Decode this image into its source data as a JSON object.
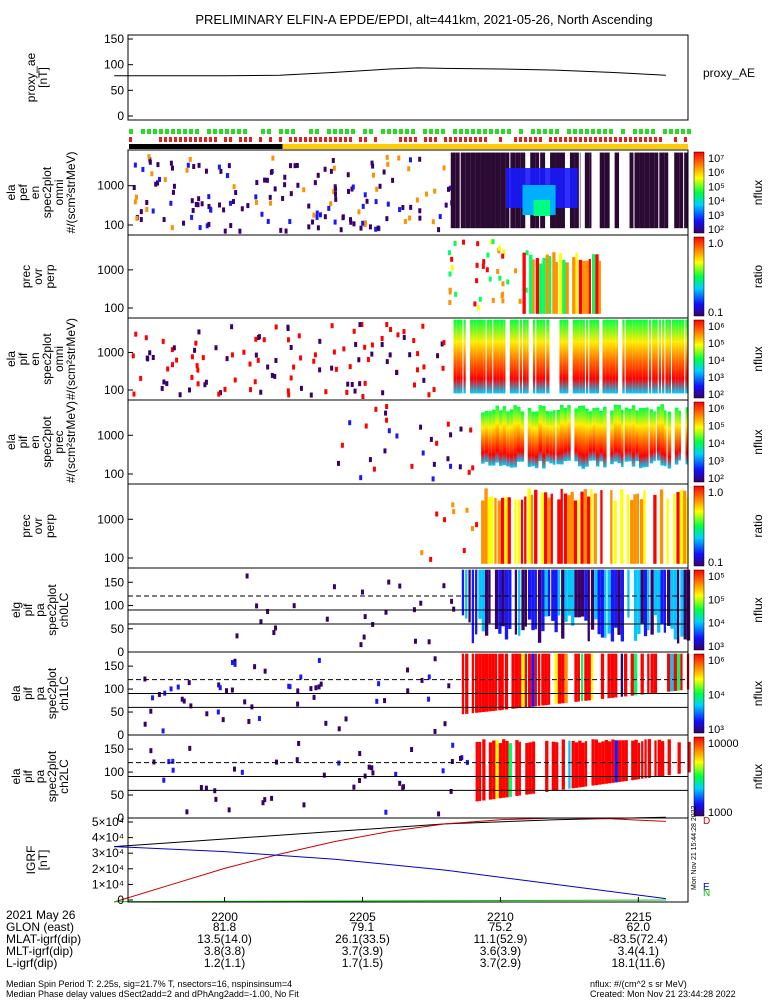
{
  "title": "PRELIMINARY ELFIN-A EPDE/EPDI, alt=441km, 2021-05-26, North Ascending",
  "colors": {
    "axis": "#000000",
    "proxy_line": "#000000",
    "igrf_black": "#000000",
    "igrf_red": "#cc0000",
    "igrf_blue": "#0000cc",
    "igrf_green": "#00cc00",
    "bar_green": "#22dd22",
    "bar_red": "#dd2222",
    "bar_black": "#000000",
    "bar_yellow": "#ffcc00",
    "dark_fill": "#2a0a33"
  },
  "chart_data": [
    {
      "type": "line",
      "id": "proxy_ae",
      "ylabel": "proxy_ae\n[nT]",
      "right_label": "proxy_AE",
      "yticks": [
        "150",
        "100",
        "50",
        "0"
      ],
      "ylim": [
        0,
        150
      ],
      "series": [
        {
          "name": "proxy_AE",
          "x": [
            2196,
            2198,
            2200,
            2202,
            2204,
            2206,
            2207,
            2208,
            2210,
            2212,
            2214,
            2216
          ],
          "y": [
            78,
            78,
            78,
            79,
            84,
            90,
            92,
            91,
            90,
            88,
            84,
            79
          ]
        }
      ]
    },
    {
      "type": "heatmap",
      "id": "ela_perf_en",
      "ylabel": "ela\npef\nen\nspec2plot\nomni\n#/(scm²strMeV)",
      "yticks": [
        "1000",
        "100"
      ],
      "colorbar": {
        "label": "nflux",
        "ticks": [
          "10⁷",
          "10⁶",
          "10⁵",
          "10⁴",
          "10³",
          "10²"
        ]
      }
    },
    {
      "type": "heatmap",
      "id": "prec_ovr_perp_e",
      "ylabel": "prec\novr\nperp",
      "yticks": [
        "1000",
        "100"
      ],
      "colorbar": {
        "label": "ratio",
        "ticks": [
          "1.0",
          "0.1"
        ]
      }
    },
    {
      "type": "heatmap",
      "id": "ela_pif_en_omni",
      "ylabel": "ela\npif\nen\nspec2plot\nomni\n#/(scm²strMeV)",
      "yticks": [
        "1000",
        "100"
      ],
      "colorbar": {
        "label": "nflux",
        "ticks": [
          "10⁶",
          "10⁵",
          "10⁴",
          "10³",
          "10²"
        ]
      }
    },
    {
      "type": "heatmap",
      "id": "ela_pif_en_prec",
      "ylabel": "ela\npif\nen\nspec2plot\nprec\n#/(scm²strMeV)",
      "yticks": [
        "1000",
        "100"
      ],
      "colorbar": {
        "label": "nflux",
        "ticks": [
          "10⁶",
          "10⁵",
          "10⁴",
          "10³",
          "10²"
        ]
      }
    },
    {
      "type": "heatmap",
      "id": "prec_ovr_perp_i",
      "ylabel": "prec\novr\nperp",
      "yticks": [
        "1000",
        "100"
      ],
      "colorbar": {
        "label": "ratio",
        "ticks": [
          "1.0",
          "0.1"
        ]
      }
    },
    {
      "type": "heatmap",
      "id": "elg_pif_pa_ch0",
      "ylabel": "elg\npif\npa\nspec2plot\nch0LC",
      "yticks": [
        "150",
        "100",
        "50",
        "0"
      ],
      "colorbar": {
        "label": "nflux",
        "ticks": [
          "10⁵",
          "10⁵",
          "10⁴",
          "10³"
        ]
      }
    },
    {
      "type": "heatmap",
      "id": "ela_pif_pa_ch1",
      "ylabel": "ela\npif\npa\nspec2plot\nch1LC",
      "yticks": [
        "150",
        "100",
        "50",
        "0"
      ],
      "colorbar": {
        "label": "nflux",
        "ticks": [
          "10⁶",
          "10⁴",
          "10³"
        ]
      }
    },
    {
      "type": "heatmap",
      "id": "ela_pif_pa_ch2",
      "ylabel": "ela\npif\npa\nspec2plot\nch2LC",
      "yticks": [
        "150",
        "100",
        "50",
        "0"
      ],
      "colorbar": {
        "label": "nflux",
        "ticks": [
          "10000",
          "1000"
        ]
      }
    },
    {
      "type": "line",
      "id": "igrf",
      "ylabel": "IGRF\n[nT]",
      "yticks": [
        "5×10⁴",
        "4×10⁴",
        "3×10⁴",
        "2×10⁴",
        "1×10⁴",
        "0"
      ],
      "ylim": [
        0,
        50000
      ],
      "right_labels": [
        "D",
        "E",
        "N"
      ],
      "series": [
        {
          "name": "D",
          "color": "#000000",
          "x": [
            2196,
            2200,
            2204,
            2208,
            2212,
            2216
          ],
          "y": [
            33000,
            37500,
            42000,
            46500,
            49000,
            50500
          ]
        },
        {
          "name": "E",
          "color": "#cc0000",
          "x": [
            2196,
            2198,
            2200,
            2202,
            2204,
            2206,
            2208,
            2210,
            2212,
            2214,
            2216
          ],
          "y": [
            0,
            10000,
            20000,
            28500,
            36000,
            42000,
            46500,
            49000,
            50000,
            49500,
            48000
          ]
        },
        {
          "name": "N",
          "color": "#0000cc",
          "x": [
            2196,
            2200,
            2204,
            2208,
            2212,
            2216
          ],
          "y": [
            33000,
            30000,
            25500,
            19000,
            10500,
            2000
          ]
        },
        {
          "name": "",
          "color": "#00cc00",
          "x": [
            2196,
            2216
          ],
          "y": [
            200,
            1200
          ]
        }
      ]
    }
  ],
  "time_axis": {
    "ticks": [
      "2200",
      "2205",
      "2210",
      "2215"
    ],
    "tick_minutes": [
      2200,
      2205,
      2210,
      2215
    ],
    "xlim": [
      2196.5,
      2216.8
    ]
  },
  "orbit_table": {
    "date": "2021 May 26",
    "rows": [
      {
        "label": "GLON (east)",
        "values": [
          "81.8",
          "79.1",
          "75.2",
          "62.0"
        ]
      },
      {
        "label": "MLAT-igrf(dip)",
        "values": [
          "13.5(14.0)",
          "26.1(33.5)",
          "11.1(52.9)",
          "-83.5(72.4)"
        ]
      },
      {
        "label": "MLT-igrf(dip)",
        "values": [
          "3.8(3.8)",
          "3.7(3.9)",
          "3.6(3.9)",
          "3.4(4.1)"
        ]
      },
      {
        "label": "L-igrf(dip)",
        "values": [
          "1.2(1.1)",
          "1.7(1.5)",
          "3.7(2.9)",
          "18.1(11.6)"
        ]
      }
    ]
  },
  "footer": {
    "line1": "Median Spin Period T: 2.25s, sig=21.7% T, nsectors=16, nspinsinsum=4",
    "line2": "Median Phase delay values dSect2add=2 and dPhAng2add=-1.00, No Fit",
    "right1": "nflux: #/(cm^2 s sr MeV)",
    "right2": "Created: Mon Nov 21 23:44:28 2022",
    "stamp": "Mon Nov 21 15:44:28 2022"
  }
}
